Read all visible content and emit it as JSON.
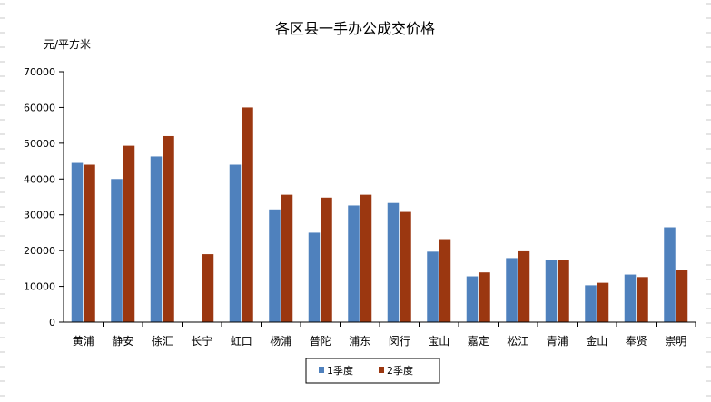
{
  "chart_data": {
    "type": "bar",
    "title": "各区县一手办公成交价格",
    "ylabel": "元/平方米",
    "xlabel": "",
    "ylim": [
      0,
      70000
    ],
    "yticks": [
      "0",
      "10000",
      "20000",
      "30000",
      "40000",
      "50000",
      "60000",
      "70000"
    ],
    "categories": [
      "黄浦",
      "静安",
      "徐汇",
      "长宁",
      "虹口",
      "杨浦",
      "普陀",
      "浦东",
      "闵行",
      "宝山",
      "嘉定",
      "松江",
      "青浦",
      "金山",
      "奉贤",
      "崇明"
    ],
    "series": [
      {
        "name": "1季度",
        "color": "#4f81bd",
        "values": [
          44500,
          40000,
          46300,
          0,
          44000,
          31500,
          25000,
          32600,
          33300,
          19700,
          12800,
          17900,
          17500,
          10300,
          13300,
          26500
        ]
      },
      {
        "name": "2季度",
        "color": "#9b3710",
        "values": [
          44000,
          49300,
          52000,
          19000,
          60000,
          35600,
          34800,
          35600,
          30800,
          23200,
          13900,
          19800,
          17400,
          11000,
          12600,
          14700
        ]
      }
    ],
    "legend_position": "bottom-center",
    "grid": false
  }
}
